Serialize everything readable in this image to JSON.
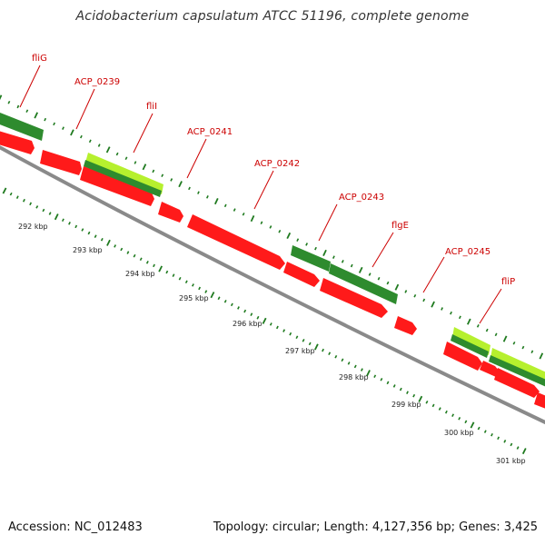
{
  "title": "Acidobacterium capsulatum ATCC 51196, complete genome",
  "footer": {
    "accession": "Accession: NC_012483",
    "summary": "Topology: circular; Length: 4,127,356 bp; Genes: 3,425"
  },
  "colors": {
    "cds_red": "#ff1a1a",
    "gene_green": "#2e8b2e",
    "gene_lightgreen": "#b6f02e",
    "label_red": "#cc0000",
    "backbone": "#888888",
    "tick_green": "#1f7a1f"
  },
  "gene_labels": [
    "fliG",
    "ACP_0239",
    "fliI",
    "ACP_0241",
    "ACP_0242",
    "ACP_0243",
    "flgE",
    "ACP_0245",
    "fliP"
  ],
  "scale_labels": [
    "292 kbp",
    "293 kbp",
    "294 kbp",
    "295 kbp",
    "296 kbp",
    "297 kbp",
    "298 kbp",
    "299 kbp",
    "300 kbp",
    "301 kbp"
  ]
}
